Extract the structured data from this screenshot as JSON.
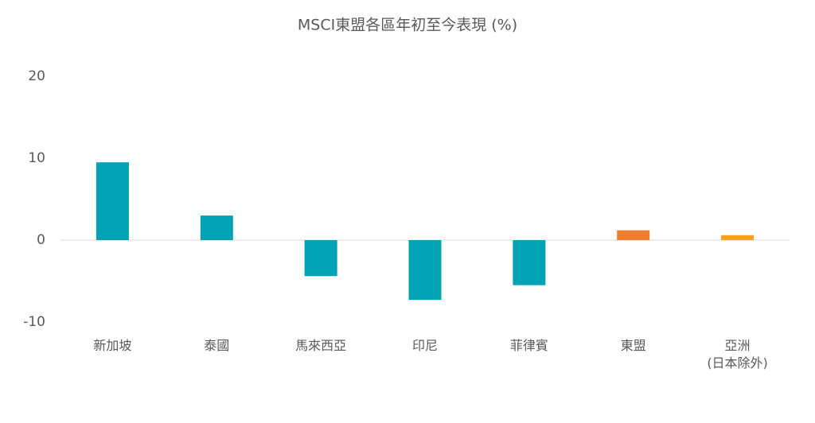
{
  "chart_data": {
    "type": "bar",
    "title": "MSCI東盟各區年初至今表現 (%)",
    "categories": [
      "新加坡",
      "泰國",
      "馬來西亞",
      "印尼",
      "菲律賓",
      "東盟",
      "亞洲\n(日本除外)"
    ],
    "values": [
      9.5,
      3.0,
      -4.4,
      -7.3,
      -5.5,
      1.2,
      0.6
    ],
    "colors": [
      "#00a3b4",
      "#00a3b4",
      "#00a3b4",
      "#00a3b4",
      "#00a3b4",
      "#ef7d2d",
      "#f6a123"
    ],
    "ylim": [
      -10,
      20
    ],
    "yticks": [
      -10,
      0,
      10,
      20
    ],
    "grid": false
  }
}
